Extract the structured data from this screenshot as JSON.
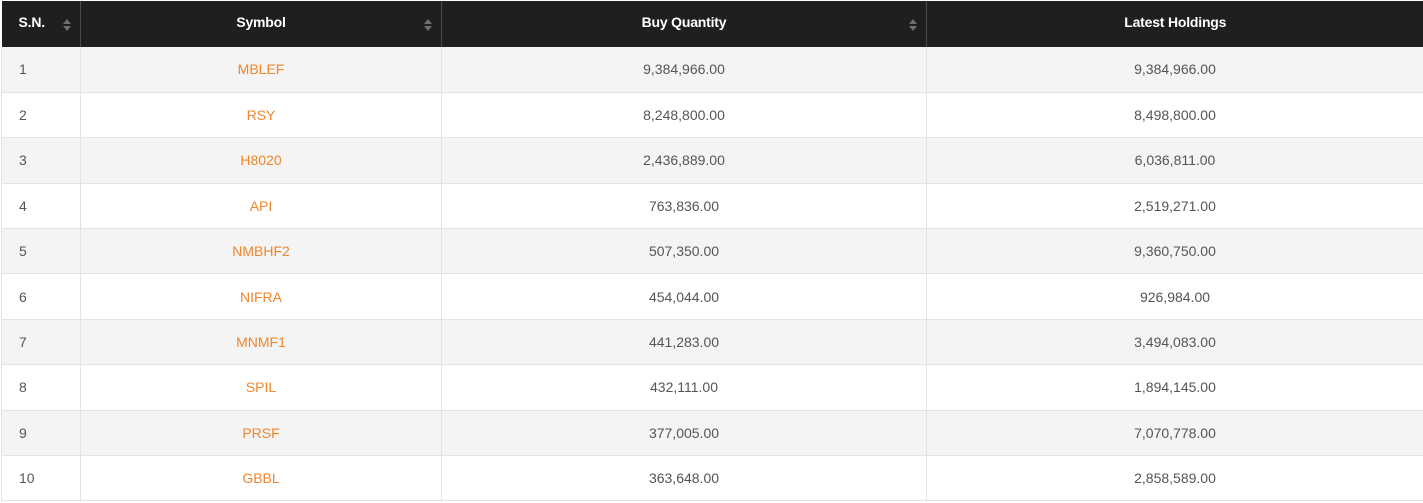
{
  "colors": {
    "header_bg": "#1f1f1f",
    "header_text": "#ffffff",
    "symbol_link": "#f0862a",
    "body_text": "#555555",
    "row_odd": "#f4f4f4",
    "row_even": "#ffffff"
  },
  "table": {
    "columns": [
      {
        "label": "S.N.",
        "sortable": true
      },
      {
        "label": "Symbol",
        "sortable": true
      },
      {
        "label": "Buy Quantity",
        "sortable": true
      },
      {
        "label": "Latest Holdings",
        "sortable": false
      }
    ],
    "rows": [
      {
        "sn": "1",
        "symbol": "MBLEF",
        "buy_quantity": "9,384,966.00",
        "latest_holdings": "9,384,966.00"
      },
      {
        "sn": "2",
        "symbol": "RSY",
        "buy_quantity": "8,248,800.00",
        "latest_holdings": "8,498,800.00"
      },
      {
        "sn": "3",
        "symbol": "H8020",
        "buy_quantity": "2,436,889.00",
        "latest_holdings": "6,036,811.00"
      },
      {
        "sn": "4",
        "symbol": "API",
        "buy_quantity": "763,836.00",
        "latest_holdings": "2,519,271.00"
      },
      {
        "sn": "5",
        "symbol": "NMBHF2",
        "buy_quantity": "507,350.00",
        "latest_holdings": "9,360,750.00"
      },
      {
        "sn": "6",
        "symbol": "NIFRA",
        "buy_quantity": "454,044.00",
        "latest_holdings": "926,984.00"
      },
      {
        "sn": "7",
        "symbol": "MNMF1",
        "buy_quantity": "441,283.00",
        "latest_holdings": "3,494,083.00"
      },
      {
        "sn": "8",
        "symbol": "SPIL",
        "buy_quantity": "432,111.00",
        "latest_holdings": "1,894,145.00"
      },
      {
        "sn": "9",
        "symbol": "PRSF",
        "buy_quantity": "377,005.00",
        "latest_holdings": "7,070,778.00"
      },
      {
        "sn": "10",
        "symbol": "GBBL",
        "buy_quantity": "363,648.00",
        "latest_holdings": "2,858,589.00"
      }
    ]
  }
}
